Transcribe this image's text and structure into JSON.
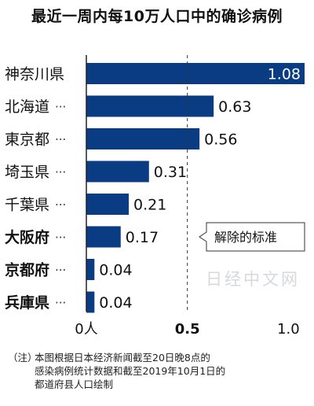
{
  "title": "最近一周内每10万人口中的确诊病例",
  "chart_data": {
    "type": "bar",
    "orientation": "horizontal",
    "categories": [
      "神奈川県",
      "北海道",
      "東京都",
      "埼玉県",
      "千葉県",
      "大阪府",
      "京都府",
      "兵庫県"
    ],
    "leader_dots": [
      "",
      "···",
      "···",
      "···",
      "···",
      "···",
      "···",
      "···"
    ],
    "values": [
      1.08,
      0.63,
      0.56,
      0.31,
      0.21,
      0.17,
      0.04,
      0.04
    ],
    "value_labels": [
      "1.08",
      "0.63",
      "0.56",
      "0.31",
      "0.21",
      "0.17",
      "0.04",
      "0.04"
    ],
    "bold_categories": [
      "大阪府",
      "京都府",
      "兵庫県"
    ],
    "xlim": [
      0,
      1.08
    ],
    "x_ticks": [
      {
        "value": 0,
        "label": "0人"
      },
      {
        "value": 0.5,
        "label": "0.5"
      },
      {
        "value": 1.0,
        "label": "1.0"
      }
    ],
    "reference_line": {
      "value": 0.5,
      "label": "解除的标准"
    },
    "bar_color": "#0a3c84",
    "label_color_inside": "#ffffff"
  },
  "watermark": "日经中文网",
  "note": {
    "lead": "（注）",
    "lines": [
      "本图根据日本经济新闻截至20日晚8点的",
      "感染病例统计数据和截至2019年10月1日的",
      "都道府县人口绘制"
    ]
  }
}
